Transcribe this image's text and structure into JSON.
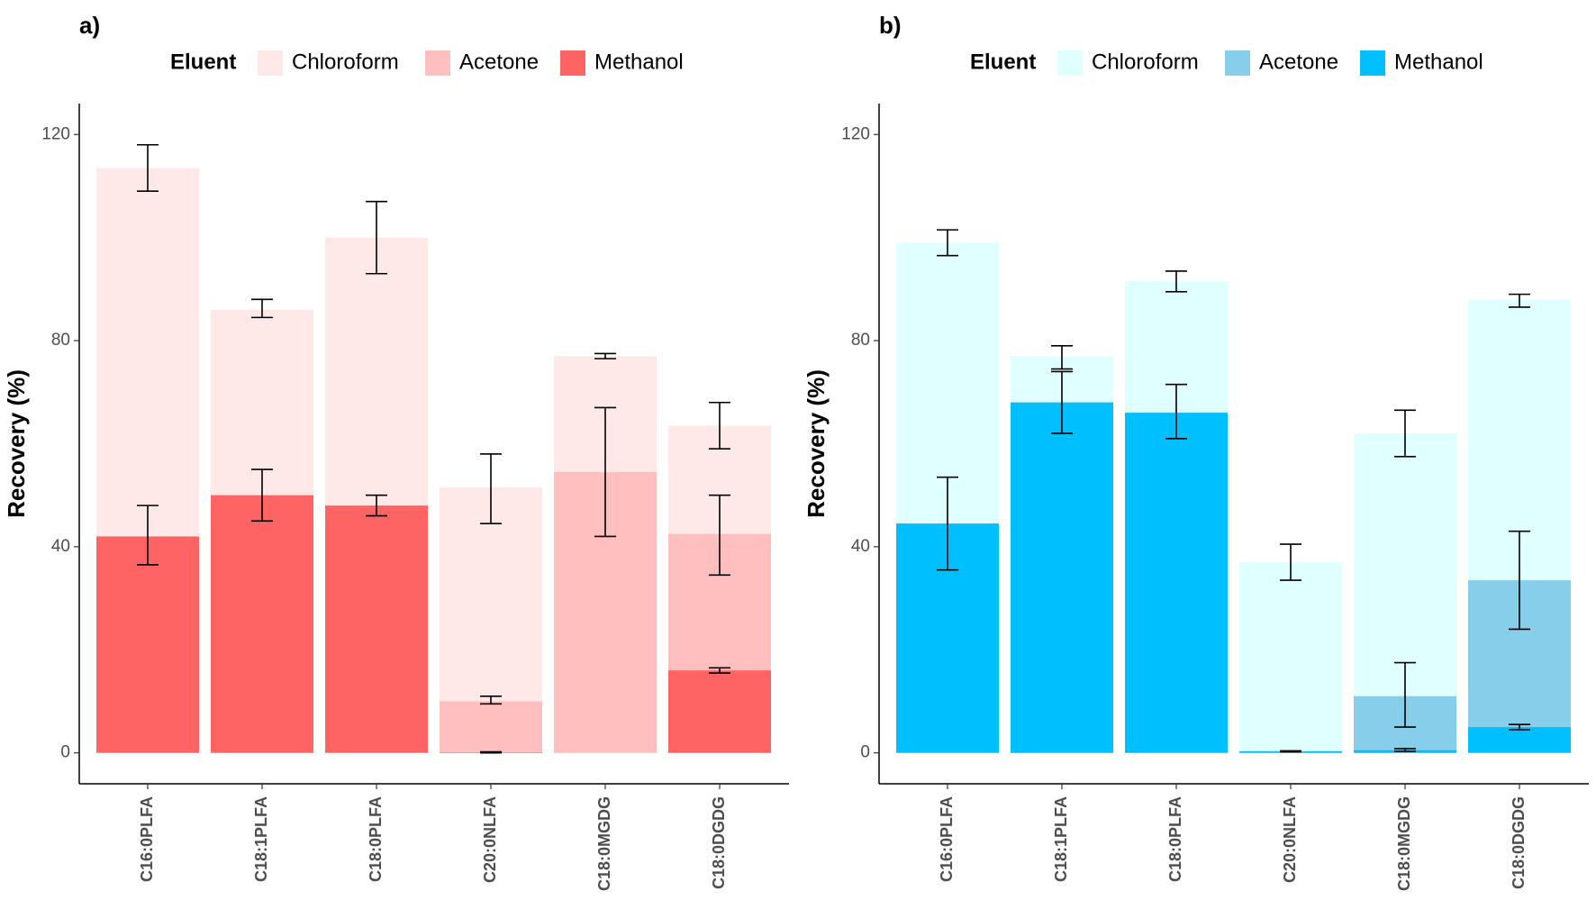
{
  "chart_data": [
    {
      "type": "bar",
      "panel_label": "a)",
      "legend_title": "Eluent",
      "legend_position": "top",
      "ylabel": "Recovery (%)",
      "xlabel": "",
      "ylim": [
        -6,
        126
      ],
      "yticks": [
        0,
        40,
        80,
        120
      ],
      "categories": [
        "C16:0PLFA",
        "C18:1PLFA",
        "C18:0PLFA",
        "C20:0NLFA",
        "C18:0MGDG",
        "C18:0DGDG"
      ],
      "series": [
        {
          "name": "Chloroform",
          "color": "#ffe8e8",
          "values": [
            113.5,
            86,
            100,
            51.5,
            77,
            63.5
          ],
          "err_low": [
            109,
            84.5,
            93,
            44.5,
            76.5,
            59
          ],
          "err_high": [
            118,
            88,
            107,
            58,
            77.5,
            68
          ]
        },
        {
          "name": "Acetone",
          "color": "#ffbfbf",
          "values": [
            42,
            50,
            48,
            10,
            54.5,
            42.5
          ],
          "err_low": [
            null,
            null,
            null,
            9.5,
            42,
            34.5
          ],
          "err_high": [
            null,
            null,
            null,
            11,
            67,
            50
          ]
        },
        {
          "name": "Methanol",
          "color": "#ff6464",
          "values": [
            42,
            50,
            48,
            0.1,
            0,
            16
          ],
          "err_low": [
            36.5,
            45,
            46,
            0,
            null,
            15.5
          ],
          "err_high": [
            48,
            55,
            50,
            0.2,
            null,
            16.5
          ]
        }
      ]
    },
    {
      "type": "bar",
      "panel_label": "b)",
      "legend_title": "Eluent",
      "legend_position": "top",
      "ylabel": "Recovery (%)",
      "xlabel": "",
      "ylim": [
        -6,
        126
      ],
      "yticks": [
        0,
        40,
        80,
        120
      ],
      "categories": [
        "C16:0PLFA",
        "C18:1PLFA",
        "C18:0PLFA",
        "C20:0NLFA",
        "C18:0MGDG",
        "C18:0DGDG"
      ],
      "series": [
        {
          "name": "Chloroform",
          "color": "#e0ffff",
          "values": [
            99,
            77,
            91.5,
            37,
            62,
            88
          ],
          "err_low": [
            96.5,
            74.5,
            89.5,
            33.5,
            57.5,
            86.5
          ],
          "err_high": [
            101.5,
            79,
            93.5,
            40.5,
            66.5,
            89
          ]
        },
        {
          "name": "Acetone",
          "color": "#87ceeb",
          "values": [
            44.5,
            68,
            66,
            0.3,
            11,
            33.5
          ],
          "err_low": [
            null,
            null,
            null,
            null,
            5,
            24
          ],
          "err_high": [
            null,
            null,
            null,
            null,
            17.5,
            43
          ]
        },
        {
          "name": "Methanol",
          "color": "#00bfff",
          "values": [
            44.5,
            68,
            66,
            0.3,
            0.5,
            5
          ],
          "err_low": [
            35.5,
            62,
            61,
            0.2,
            0.3,
            4.5
          ],
          "err_high": [
            53.5,
            74,
            71.5,
            0.4,
            0.8,
            5.5
          ]
        }
      ]
    }
  ]
}
